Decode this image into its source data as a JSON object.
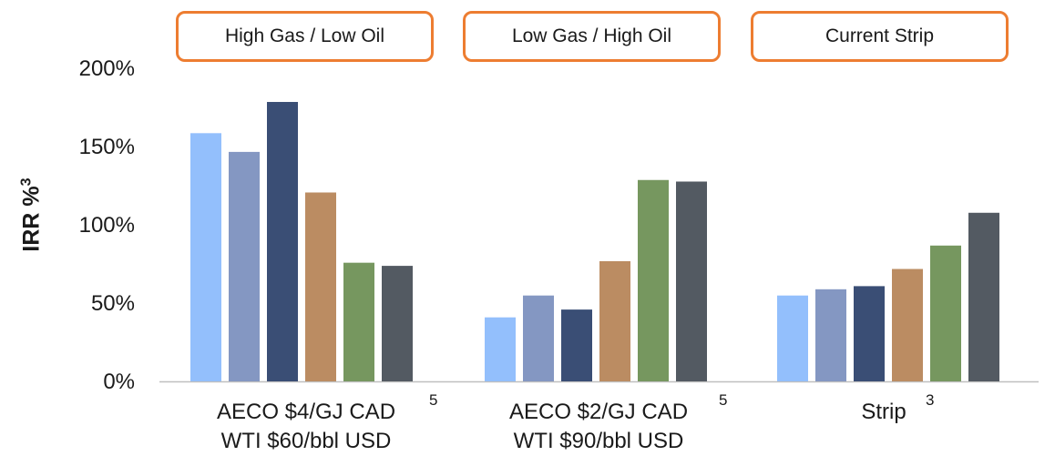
{
  "scenarios": [
    {
      "label": "High Gas / Low Oil"
    },
    {
      "label": "Low Gas / High Oil"
    },
    {
      "label": "Current Strip"
    }
  ],
  "y_axis": {
    "label": "IRR %",
    "label_sup": "3",
    "ticks": [
      "0%",
      "50%",
      "100%",
      "150%",
      "200%"
    ]
  },
  "x_axis": {
    "groups": [
      {
        "line1": "AECO $4/GJ CAD",
        "line2": "WTI $60/bbl USD",
        "sup": "5"
      },
      {
        "line1": "AECO $2/GJ CAD",
        "line2": "WTI $90/bbl USD",
        "sup": "5"
      },
      {
        "line1": "Strip",
        "line2": "",
        "sup": "3"
      }
    ]
  },
  "colors": [
    "#93BFFC",
    "#8497C2",
    "#3A4E75",
    "#BB8C62",
    "#76975F",
    "#535A62"
  ],
  "chart_data": {
    "type": "bar",
    "categories": [
      "AECO $4/GJ CAD WTI $60/bbl USD",
      "AECO $2/GJ CAD WTI $90/bbl USD",
      "Strip"
    ],
    "series": [
      {
        "values": [
          159,
          41,
          55
        ]
      },
      {
        "values": [
          147,
          55,
          59
        ]
      },
      {
        "values": [
          179,
          46,
          61
        ]
      },
      {
        "values": [
          121,
          77,
          72
        ]
      },
      {
        "values": [
          76,
          129,
          87
        ]
      },
      {
        "values": [
          74,
          128,
          108
        ]
      }
    ],
    "ylabel": "IRR %",
    "ylim": [
      0,
      200
    ],
    "yticks": [
      0,
      50,
      100,
      150,
      200
    ],
    "grid": false,
    "legend": "none"
  }
}
